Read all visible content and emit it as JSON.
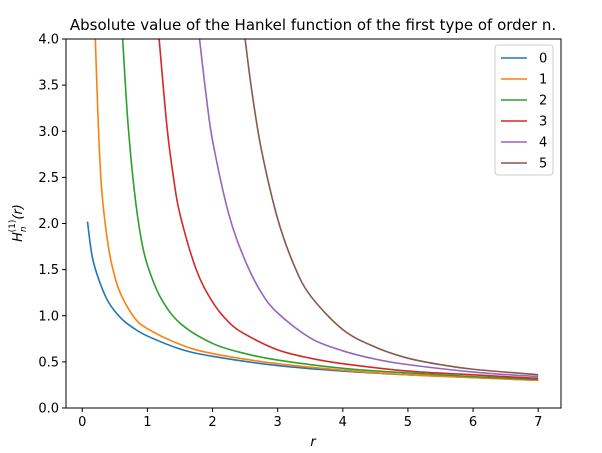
{
  "chart_data": {
    "type": "line",
    "title": "Absolute value of the Hankel function of the first type of order n.",
    "xlabel": "r",
    "ylabel": {
      "base": "H",
      "sub": "n",
      "sup": "(1)",
      "arg": "(r)"
    },
    "xlim": [
      -0.25,
      7.35
    ],
    "ylim": [
      0,
      4
    ],
    "xticks": [
      0,
      1,
      2,
      3,
      4,
      5,
      6,
      7
    ],
    "yticks": [
      0.0,
      0.5,
      1.0,
      1.5,
      2.0,
      2.5,
      3.0,
      3.5,
      4.0
    ],
    "ytick_labels": [
      "0.0",
      "0.5",
      "1.0",
      "1.5",
      "2.0",
      "2.5",
      "3.0",
      "3.5",
      "4.0"
    ],
    "grid": false,
    "legend_position": "top-right",
    "series": [
      {
        "name": "0",
        "color": "#1f77b4",
        "x": [
          0.08,
          0.15,
          0.25,
          0.4,
          0.6,
          0.8,
          1.0,
          1.5,
          2.0,
          3.0,
          4.0,
          5.0,
          6.0,
          7.0
        ],
        "y": [
          2.02,
          1.65,
          1.4,
          1.15,
          0.97,
          0.86,
          0.78,
          0.64,
          0.56,
          0.46,
          0.4,
          0.36,
          0.33,
          0.3
        ]
      },
      {
        "name": "1",
        "color": "#ff7f0e",
        "x": [
          0.2,
          0.25,
          0.3,
          0.4,
          0.5,
          0.6,
          0.8,
          1.0,
          1.5,
          2.0,
          3.0,
          4.0,
          5.0,
          6.0,
          7.0
        ],
        "y": [
          4.0,
          3.0,
          2.35,
          1.75,
          1.42,
          1.22,
          0.98,
          0.86,
          0.69,
          0.59,
          0.48,
          0.41,
          0.36,
          0.33,
          0.3
        ]
      },
      {
        "name": "2",
        "color": "#2ca02c",
        "x": [
          0.62,
          0.7,
          0.8,
          0.9,
          1.0,
          1.2,
          1.5,
          2.0,
          2.5,
          3.0,
          4.0,
          5.0,
          6.0,
          7.0
        ],
        "y": [
          4.0,
          3.1,
          2.35,
          1.85,
          1.55,
          1.2,
          0.92,
          0.7,
          0.59,
          0.52,
          0.43,
          0.38,
          0.34,
          0.31
        ]
      },
      {
        "name": "3",
        "color": "#d62728",
        "x": [
          1.18,
          1.3,
          1.4,
          1.5,
          1.75,
          2.0,
          2.25,
          2.5,
          3.0,
          3.5,
          4.0,
          5.0,
          6.0,
          7.0
        ],
        "y": [
          4.0,
          3.05,
          2.5,
          2.1,
          1.5,
          1.15,
          0.93,
          0.8,
          0.63,
          0.54,
          0.48,
          0.4,
          0.36,
          0.32
        ]
      },
      {
        "name": "4",
        "color": "#9467bd",
        "x": [
          1.8,
          1.9,
          2.0,
          2.25,
          2.5,
          2.75,
          3.0,
          3.5,
          4.0,
          4.5,
          5.0,
          6.0,
          7.0
        ],
        "y": [
          4.0,
          3.4,
          2.9,
          2.1,
          1.6,
          1.25,
          1.03,
          0.76,
          0.62,
          0.53,
          0.47,
          0.39,
          0.34
        ],
        "note": ""
      },
      {
        "name": "5",
        "color": "#8c564b",
        "x": [
          2.5,
          2.6,
          2.75,
          3.0,
          3.25,
          3.5,
          4.0,
          4.5,
          5.0,
          5.5,
          6.0,
          7.0
        ],
        "y": [
          4.0,
          3.45,
          2.8,
          2.05,
          1.55,
          1.22,
          0.85,
          0.66,
          0.54,
          0.47,
          0.42,
          0.36
        ]
      }
    ]
  }
}
